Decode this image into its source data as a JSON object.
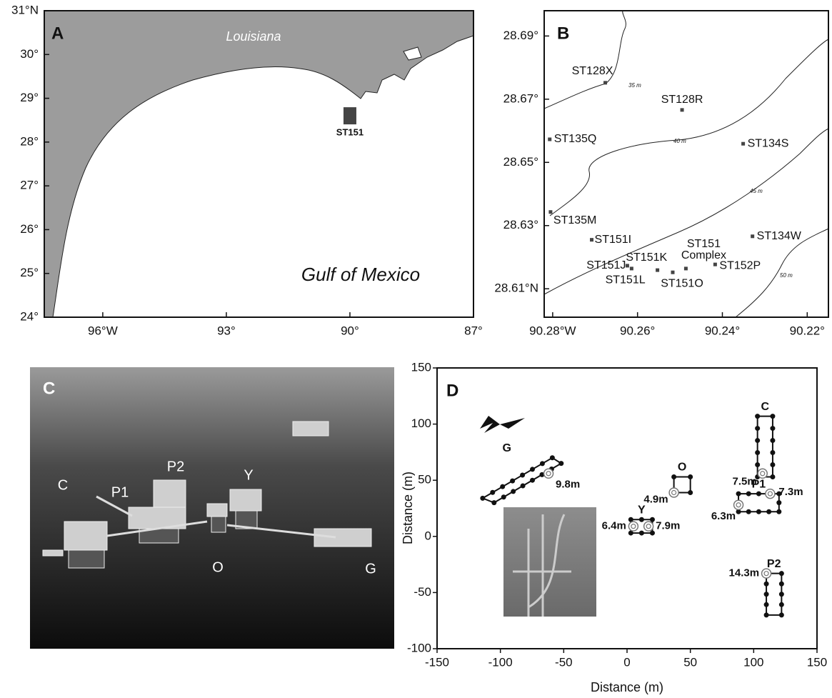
{
  "panel_a": {
    "letter": "A",
    "xlim": [
      -97.42,
      -87
    ],
    "ylim": [
      24,
      31
    ],
    "xticks": [
      {
        "value": -96,
        "label": "96°W"
      },
      {
        "value": -93,
        "label": "93°"
      },
      {
        "value": -90,
        "label": "90°"
      },
      {
        "value": -87,
        "label": "87°"
      }
    ],
    "yticks": [
      {
        "value": 24,
        "label": "24°"
      },
      {
        "value": 25,
        "label": "25°"
      },
      {
        "value": 26,
        "label": "26°"
      },
      {
        "value": 27,
        "label": "27°"
      },
      {
        "value": 28,
        "label": "28°"
      },
      {
        "value": 29,
        "label": "29°"
      },
      {
        "value": 30,
        "label": "30°"
      },
      {
        "value": 31,
        "label": "31°N"
      }
    ],
    "land_label": "Louisiana",
    "sea_label": "Gulf of Mexico",
    "site": {
      "label": "ST151",
      "lon": -90.0,
      "lat": 28.6
    }
  },
  "panel_b": {
    "letter": "B",
    "xlim": [
      -90.282,
      -90.215
    ],
    "ylim": [
      28.601,
      28.698
    ],
    "xticks": [
      {
        "value": -90.28,
        "label": "90.28°W"
      },
      {
        "value": -90.26,
        "label": "90.26°"
      },
      {
        "value": -90.24,
        "label": "90.24°"
      },
      {
        "value": -90.22,
        "label": "90.22°"
      }
    ],
    "yticks": [
      {
        "value": 28.61,
        "label": "28.61°N"
      },
      {
        "value": 28.63,
        "label": "28.63°"
      },
      {
        "value": 28.65,
        "label": "28.65°"
      },
      {
        "value": 28.67,
        "label": "28.67°"
      },
      {
        "value": 28.69,
        "label": "28.69°"
      }
    ],
    "contours": [
      "35 m",
      "40 m",
      "45 m",
      "50 m"
    ],
    "stations": [
      {
        "label": "ST128X",
        "lon": -90.2676,
        "lat": 28.6752
      },
      {
        "label": "ST128R",
        "lon": -90.2495,
        "lat": 28.6666
      },
      {
        "label": "ST135Q",
        "lon": -90.2807,
        "lat": 28.6573
      },
      {
        "label": "ST134S",
        "lon": -90.2351,
        "lat": 28.6559
      },
      {
        "label": "ST135M",
        "lon": -90.2805,
        "lat": 28.6343
      },
      {
        "label": "ST151I",
        "lon": -90.2708,
        "lat": 28.6255
      },
      {
        "label": "ST134W",
        "lon": -90.2329,
        "lat": 28.6266
      },
      {
        "label": "ST151J",
        "lon": -90.2624,
        "lat": 28.6173
      },
      {
        "label": "ST151K",
        "lon": -90.2614,
        "lat": 28.6164
      },
      {
        "label": "ST151L",
        "lon": -90.2553,
        "lat": 28.6159
      },
      {
        "label": "ST151O",
        "lon": -90.2517,
        "lat": 28.6152
      },
      {
        "label": "ST151",
        "label2": "Complex",
        "lon": -90.2486,
        "lat": 28.6164
      },
      {
        "label": "ST152P",
        "lon": -90.2417,
        "lat": 28.6177
      }
    ]
  },
  "panel_c": {
    "letter": "C",
    "platforms": [
      "C",
      "P1",
      "P2",
      "Y",
      "O",
      "G"
    ]
  },
  "panel_d": {
    "letter": "D",
    "xlabel": "Distance (m)",
    "ylabel": "Distance (m)",
    "xlim": [
      -150,
      150
    ],
    "ylim": [
      -100,
      150
    ],
    "xticks": [
      -150,
      -100,
      -50,
      0,
      50,
      100,
      150
    ],
    "yticks": [
      -100,
      -50,
      0,
      50,
      100,
      150
    ],
    "platforms": [
      {
        "name": "G",
        "outline": [
          [
            -114,
            34
          ],
          [
            -105,
            30
          ],
          [
            -52,
            65
          ],
          [
            -59,
            70
          ]
        ],
        "sensors": [
          {
            "x": -62,
            "y": 56,
            "depth": "9.8m"
          }
        ]
      },
      {
        "name": "O",
        "outline": [
          [
            37,
            39
          ],
          [
            37,
            53
          ],
          [
            50,
            53
          ],
          [
            50,
            39
          ]
        ],
        "sensors": [
          {
            "x": 37,
            "y": 39,
            "depth": "4.9m"
          }
        ]
      },
      {
        "name": "C",
        "outline": [
          [
            103,
            53
          ],
          [
            103,
            107
          ],
          [
            115,
            107
          ],
          [
            115,
            53
          ]
        ],
        "sensors": [
          {
            "x": 107,
            "y": 56,
            "depth": "7.5m"
          }
        ]
      },
      {
        "name": "P1",
        "outline": [
          [
            88,
            22
          ],
          [
            88,
            38
          ],
          [
            120,
            38
          ],
          [
            120,
            22
          ]
        ],
        "sensors": [
          {
            "x": 113,
            "y": 38,
            "depth": "7.3m"
          },
          {
            "x": 88,
            "y": 28,
            "depth": "6.3m"
          }
        ]
      },
      {
        "name": "Y",
        "outline": [
          [
            3,
            3
          ],
          [
            3,
            15
          ],
          [
            20,
            15
          ],
          [
            20,
            3
          ]
        ],
        "sensors": [
          {
            "x": 5,
            "y": 9,
            "depth": "6.4m"
          },
          {
            "x": 17,
            "y": 9,
            "depth": "7.9m"
          }
        ]
      },
      {
        "name": "P2",
        "outline": [
          [
            110,
            -70
          ],
          [
            110,
            -33
          ],
          [
            122,
            -33
          ],
          [
            122,
            -70
          ]
        ],
        "sensors": [
          {
            "x": 110,
            "y": -33,
            "depth": "14.3m"
          }
        ]
      }
    ]
  }
}
